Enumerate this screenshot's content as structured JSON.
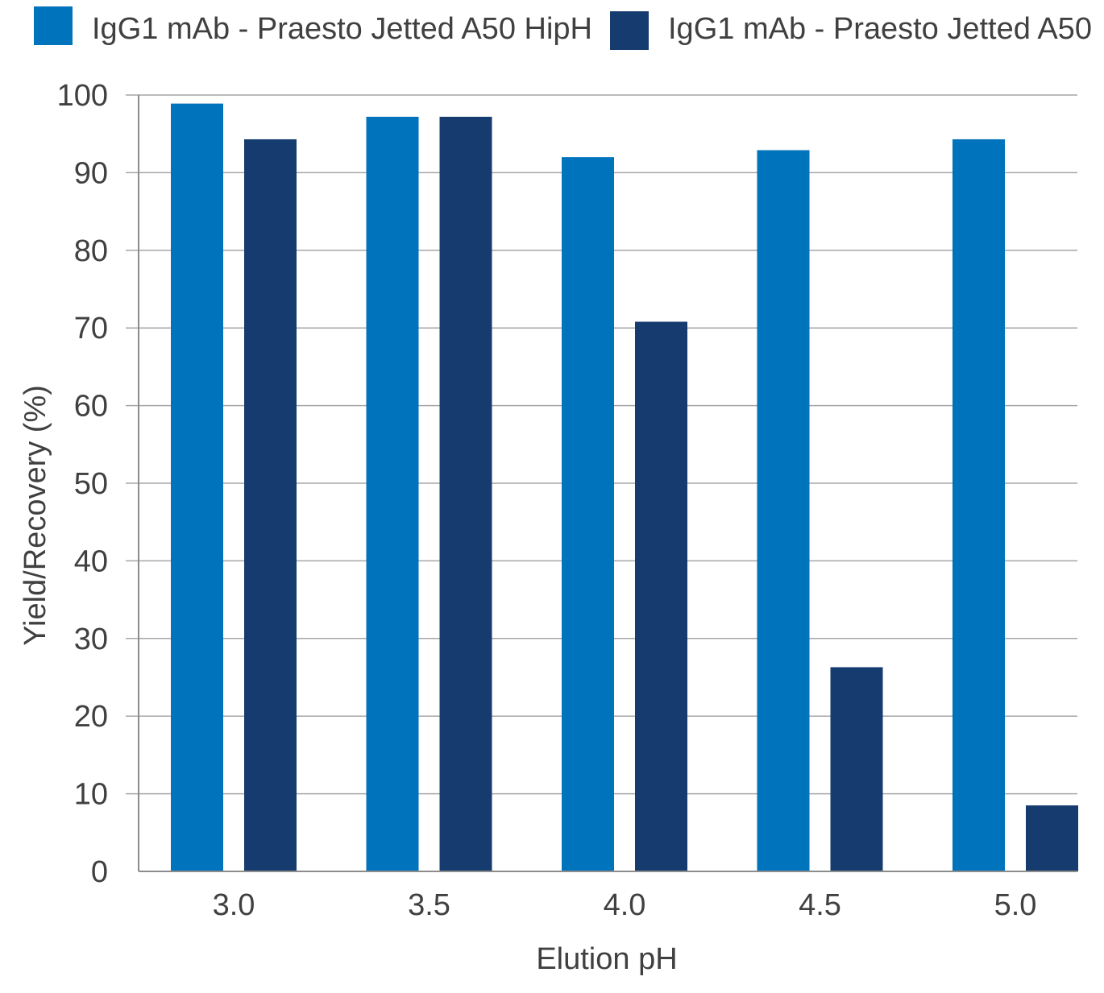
{
  "chart_data": {
    "type": "bar",
    "categories": [
      "3.0",
      "3.5",
      "4.0",
      "4.5",
      "5.0"
    ],
    "series": [
      {
        "name": "IgG1 mAb - Praesto Jetted A50 HipH",
        "color": "#0073bd",
        "values": [
          98.9,
          97.2,
          92.0,
          92.9,
          94.3
        ]
      },
      {
        "name": "IgG1 mAb - Praesto Jetted A50",
        "color": "#163c6f",
        "values": [
          94.3,
          97.2,
          70.8,
          26.3,
          8.5
        ]
      }
    ],
    "xlabel": "Elution pH",
    "ylabel": "Yield/Recovery (%)",
    "ylim": [
      0,
      100
    ],
    "yticks": [
      "0",
      "10",
      "20",
      "30",
      "40",
      "50",
      "60",
      "70",
      "80",
      "90",
      "100"
    ],
    "grid": true,
    "legend": "top",
    "colors": {
      "gridline": "#a6a6a6",
      "text": "#404040",
      "axis": "#8c8c8c"
    }
  }
}
